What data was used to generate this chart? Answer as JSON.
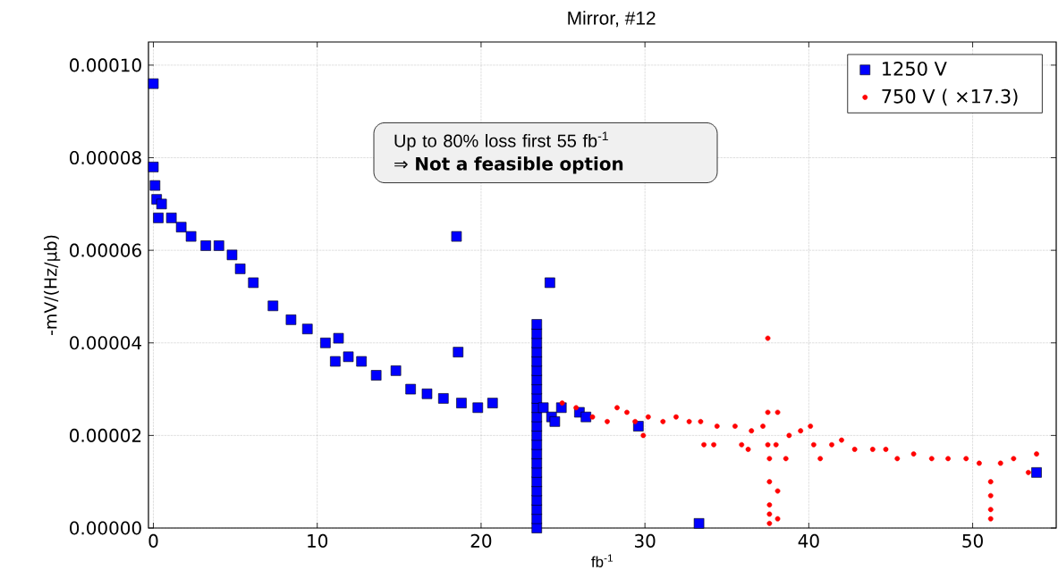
{
  "chart_data": {
    "type": "scatter",
    "title": "Mirror, #12",
    "xlabel": "fb$^{-1}$",
    "ylabel": "-mV/(Hz/μb)",
    "annotations": [
      "Up to 80% loss first 55 fb$^{-1}$",
      "⇒ **Not a feasible option**"
    ],
    "xlim": [
      -0.3,
      55.1
    ],
    "ylim": [
      0,
      0.000105
    ],
    "xticks": [
      0,
      10,
      20,
      30,
      40,
      50
    ],
    "yticks": [
      {
        "value": 0,
        "label": "0.00000"
      },
      {
        "value": 2e-05,
        "label": "0.00002"
      },
      {
        "value": 4e-05,
        "label": "0.00004"
      },
      {
        "value": 6e-05,
        "label": "0.00006"
      },
      {
        "value": 8e-05,
        "label": "0.00008"
      },
      {
        "value": 0.0001,
        "label": "0.00010"
      }
    ],
    "grid": true,
    "legend": "top right",
    "series": [
      {
        "name": "1250 V",
        "color": "#0000ff",
        "marker": "square",
        "x": [
          0.0,
          0.0,
          0.1,
          0.2,
          0.3,
          0.5,
          1.1,
          1.7,
          2.3,
          3.2,
          4.0,
          4.8,
          5.3,
          6.1,
          7.3,
          8.4,
          9.4,
          10.5,
          11.1,
          11.3,
          11.9,
          12.7,
          13.6,
          14.8,
          15.7,
          16.7,
          17.7,
          18.5,
          18.6,
          18.8,
          19.8,
          20.7,
          23.4,
          23.4,
          23.4,
          23.4,
          23.4,
          23.4,
          23.4,
          23.4,
          23.4,
          23.4,
          23.4,
          23.4,
          23.4,
          23.4,
          23.4,
          23.4,
          23.4,
          23.4,
          23.4,
          23.4,
          23.4,
          23.4,
          23.4,
          23.8,
          24.2,
          24.3,
          24.5,
          24.9,
          26.0,
          26.4,
          29.6,
          33.3,
          53.9
        ],
        "values": [
          9.6e-05,
          7.8e-05,
          7.4e-05,
          7.1e-05,
          6.7e-05,
          7e-05,
          6.7e-05,
          6.5e-05,
          6.3e-05,
          6.1e-05,
          6.1e-05,
          5.9e-05,
          5.6e-05,
          5.3e-05,
          4.8e-05,
          4.5e-05,
          4.3e-05,
          4e-05,
          3.6e-05,
          4.1e-05,
          3.7e-05,
          3.6e-05,
          3.3e-05,
          3.4e-05,
          3e-05,
          2.9e-05,
          2.8e-05,
          6.3e-05,
          3.8e-05,
          2.7e-05,
          2.6e-05,
          2.7e-05,
          0.0,
          2e-06,
          4e-06,
          6e-06,
          8e-06,
          1e-05,
          1.2e-05,
          1.4e-05,
          1.6e-05,
          1.8e-05,
          2e-05,
          2.2e-05,
          2.4e-05,
          2.6e-05,
          2.8e-05,
          3e-05,
          3.2e-05,
          3.4e-05,
          3.6e-05,
          3.8e-05,
          4e-05,
          4.2e-05,
          4.4e-05,
          2.6e-05,
          5.3e-05,
          2.4e-05,
          2.3e-05,
          2.6e-05,
          2.5e-05,
          2.4e-05,
          2.2e-05,
          1e-06,
          1.2e-05
        ]
      },
      {
        "name": "750 V ( ×17.3)",
        "color": "#ff0000",
        "marker": "circle",
        "x": [
          24.95,
          25.8,
          26.8,
          27.7,
          28.3,
          28.9,
          29.4,
          29.9,
          30.2,
          31.1,
          31.9,
          32.7,
          33.4,
          33.6,
          34.2,
          34.4,
          35.5,
          35.9,
          36.3,
          36.5,
          37.2,
          37.5,
          37.5,
          37.5,
          37.6,
          37.6,
          37.6,
          37.6,
          37.6,
          38.1,
          38.1,
          38.1,
          38.0,
          38.6,
          38.8,
          39.5,
          40.1,
          40.3,
          40.7,
          41.4,
          42.0,
          42.8,
          43.9,
          44.7,
          45.4,
          46.4,
          47.5,
          48.5,
          49.6,
          50.4,
          51.1,
          51.1,
          51.1,
          51.1,
          51.7,
          52.5,
          53.4,
          53.9
        ],
        "values": [
          2.7e-05,
          2.6e-05,
          2.4e-05,
          2.3e-05,
          2.6e-05,
          2.5e-05,
          2.3e-05,
          2e-05,
          2.4e-05,
          2.3e-05,
          2.4e-05,
          2.3e-05,
          2.3e-05,
          1.8e-05,
          1.8e-05,
          2.2e-05,
          2.2e-05,
          1.8e-05,
          1.7e-05,
          2.1e-05,
          2.2e-05,
          2.5e-05,
          4.1e-05,
          1.8e-05,
          1.5e-05,
          1e-05,
          5e-06,
          3e-06,
          1e-06,
          2.5e-05,
          8e-06,
          2e-06,
          1.8e-05,
          1.5e-05,
          2e-05,
          2.1e-05,
          2.2e-05,
          1.8e-05,
          1.5e-05,
          1.8e-05,
          1.9e-05,
          1.7e-05,
          1.7e-05,
          1.7e-05,
          1.5e-05,
          1.6e-05,
          1.5e-05,
          1.5e-05,
          1.5e-05,
          1.4e-05,
          1e-05,
          7e-06,
          4e-06,
          2e-06,
          1.4e-05,
          1.5e-05,
          1.2e-05,
          1.6e-05
        ]
      }
    ]
  }
}
